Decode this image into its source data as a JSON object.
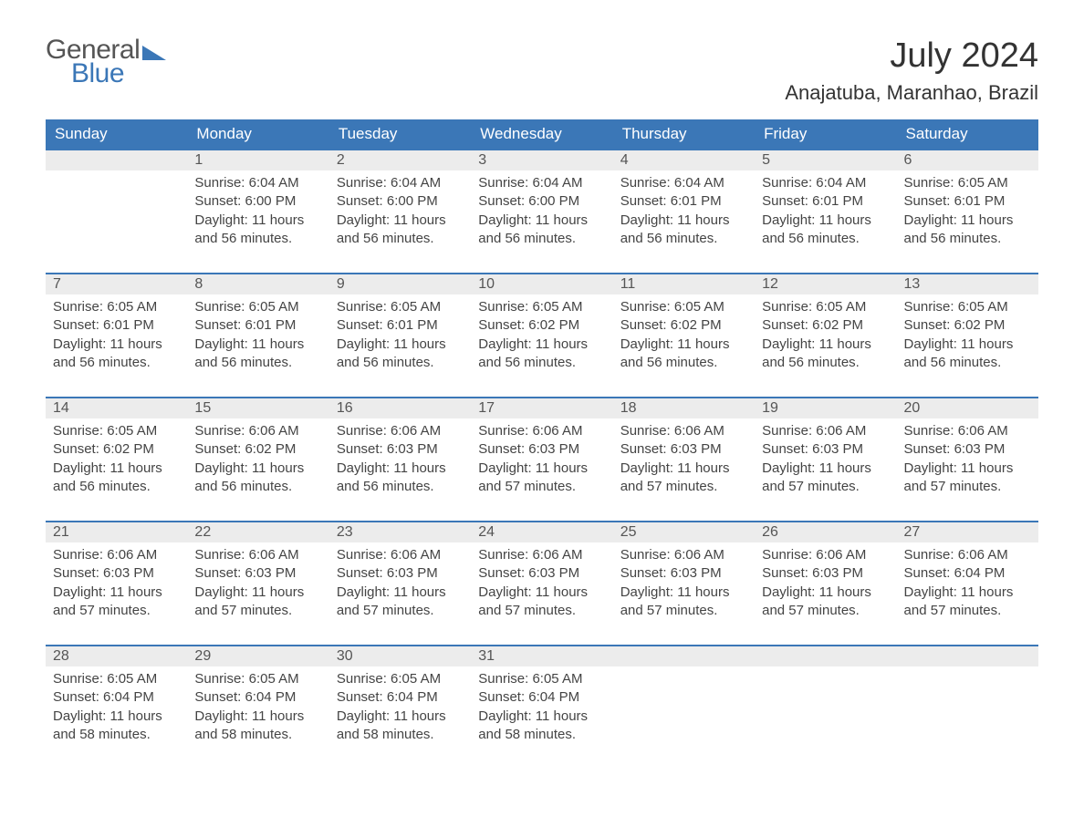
{
  "logo": {
    "line1": "General",
    "line2": "Blue",
    "brand_color": "#3b77b7",
    "text_color": "#555555"
  },
  "title": "July 2024",
  "location": "Anajatuba, Maranhao, Brazil",
  "colors": {
    "header_bg": "#3b77b7",
    "header_text": "#ffffff",
    "daynum_bg": "#ececec",
    "daynum_border": "#3b77b7",
    "body_text": "#444444",
    "page_bg": "#ffffff"
  },
  "columns": [
    "Sunday",
    "Monday",
    "Tuesday",
    "Wednesday",
    "Thursday",
    "Friday",
    "Saturday"
  ],
  "weeks": [
    [
      null,
      {
        "n": "1",
        "sunrise": "Sunrise: 6:04 AM",
        "sunset": "Sunset: 6:00 PM",
        "day1": "Daylight: 11 hours",
        "day2": "and 56 minutes."
      },
      {
        "n": "2",
        "sunrise": "Sunrise: 6:04 AM",
        "sunset": "Sunset: 6:00 PM",
        "day1": "Daylight: 11 hours",
        "day2": "and 56 minutes."
      },
      {
        "n": "3",
        "sunrise": "Sunrise: 6:04 AM",
        "sunset": "Sunset: 6:00 PM",
        "day1": "Daylight: 11 hours",
        "day2": "and 56 minutes."
      },
      {
        "n": "4",
        "sunrise": "Sunrise: 6:04 AM",
        "sunset": "Sunset: 6:01 PM",
        "day1": "Daylight: 11 hours",
        "day2": "and 56 minutes."
      },
      {
        "n": "5",
        "sunrise": "Sunrise: 6:04 AM",
        "sunset": "Sunset: 6:01 PM",
        "day1": "Daylight: 11 hours",
        "day2": "and 56 minutes."
      },
      {
        "n": "6",
        "sunrise": "Sunrise: 6:05 AM",
        "sunset": "Sunset: 6:01 PM",
        "day1": "Daylight: 11 hours",
        "day2": "and 56 minutes."
      }
    ],
    [
      {
        "n": "7",
        "sunrise": "Sunrise: 6:05 AM",
        "sunset": "Sunset: 6:01 PM",
        "day1": "Daylight: 11 hours",
        "day2": "and 56 minutes."
      },
      {
        "n": "8",
        "sunrise": "Sunrise: 6:05 AM",
        "sunset": "Sunset: 6:01 PM",
        "day1": "Daylight: 11 hours",
        "day2": "and 56 minutes."
      },
      {
        "n": "9",
        "sunrise": "Sunrise: 6:05 AM",
        "sunset": "Sunset: 6:01 PM",
        "day1": "Daylight: 11 hours",
        "day2": "and 56 minutes."
      },
      {
        "n": "10",
        "sunrise": "Sunrise: 6:05 AM",
        "sunset": "Sunset: 6:02 PM",
        "day1": "Daylight: 11 hours",
        "day2": "and 56 minutes."
      },
      {
        "n": "11",
        "sunrise": "Sunrise: 6:05 AM",
        "sunset": "Sunset: 6:02 PM",
        "day1": "Daylight: 11 hours",
        "day2": "and 56 minutes."
      },
      {
        "n": "12",
        "sunrise": "Sunrise: 6:05 AM",
        "sunset": "Sunset: 6:02 PM",
        "day1": "Daylight: 11 hours",
        "day2": "and 56 minutes."
      },
      {
        "n": "13",
        "sunrise": "Sunrise: 6:05 AM",
        "sunset": "Sunset: 6:02 PM",
        "day1": "Daylight: 11 hours",
        "day2": "and 56 minutes."
      }
    ],
    [
      {
        "n": "14",
        "sunrise": "Sunrise: 6:05 AM",
        "sunset": "Sunset: 6:02 PM",
        "day1": "Daylight: 11 hours",
        "day2": "and 56 minutes."
      },
      {
        "n": "15",
        "sunrise": "Sunrise: 6:06 AM",
        "sunset": "Sunset: 6:02 PM",
        "day1": "Daylight: 11 hours",
        "day2": "and 56 minutes."
      },
      {
        "n": "16",
        "sunrise": "Sunrise: 6:06 AM",
        "sunset": "Sunset: 6:03 PM",
        "day1": "Daylight: 11 hours",
        "day2": "and 56 minutes."
      },
      {
        "n": "17",
        "sunrise": "Sunrise: 6:06 AM",
        "sunset": "Sunset: 6:03 PM",
        "day1": "Daylight: 11 hours",
        "day2": "and 57 minutes."
      },
      {
        "n": "18",
        "sunrise": "Sunrise: 6:06 AM",
        "sunset": "Sunset: 6:03 PM",
        "day1": "Daylight: 11 hours",
        "day2": "and 57 minutes."
      },
      {
        "n": "19",
        "sunrise": "Sunrise: 6:06 AM",
        "sunset": "Sunset: 6:03 PM",
        "day1": "Daylight: 11 hours",
        "day2": "and 57 minutes."
      },
      {
        "n": "20",
        "sunrise": "Sunrise: 6:06 AM",
        "sunset": "Sunset: 6:03 PM",
        "day1": "Daylight: 11 hours",
        "day2": "and 57 minutes."
      }
    ],
    [
      {
        "n": "21",
        "sunrise": "Sunrise: 6:06 AM",
        "sunset": "Sunset: 6:03 PM",
        "day1": "Daylight: 11 hours",
        "day2": "and 57 minutes."
      },
      {
        "n": "22",
        "sunrise": "Sunrise: 6:06 AM",
        "sunset": "Sunset: 6:03 PM",
        "day1": "Daylight: 11 hours",
        "day2": "and 57 minutes."
      },
      {
        "n": "23",
        "sunrise": "Sunrise: 6:06 AM",
        "sunset": "Sunset: 6:03 PM",
        "day1": "Daylight: 11 hours",
        "day2": "and 57 minutes."
      },
      {
        "n": "24",
        "sunrise": "Sunrise: 6:06 AM",
        "sunset": "Sunset: 6:03 PM",
        "day1": "Daylight: 11 hours",
        "day2": "and 57 minutes."
      },
      {
        "n": "25",
        "sunrise": "Sunrise: 6:06 AM",
        "sunset": "Sunset: 6:03 PM",
        "day1": "Daylight: 11 hours",
        "day2": "and 57 minutes."
      },
      {
        "n": "26",
        "sunrise": "Sunrise: 6:06 AM",
        "sunset": "Sunset: 6:03 PM",
        "day1": "Daylight: 11 hours",
        "day2": "and 57 minutes."
      },
      {
        "n": "27",
        "sunrise": "Sunrise: 6:06 AM",
        "sunset": "Sunset: 6:04 PM",
        "day1": "Daylight: 11 hours",
        "day2": "and 57 minutes."
      }
    ],
    [
      {
        "n": "28",
        "sunrise": "Sunrise: 6:05 AM",
        "sunset": "Sunset: 6:04 PM",
        "day1": "Daylight: 11 hours",
        "day2": "and 58 minutes."
      },
      {
        "n": "29",
        "sunrise": "Sunrise: 6:05 AM",
        "sunset": "Sunset: 6:04 PM",
        "day1": "Daylight: 11 hours",
        "day2": "and 58 minutes."
      },
      {
        "n": "30",
        "sunrise": "Sunrise: 6:05 AM",
        "sunset": "Sunset: 6:04 PM",
        "day1": "Daylight: 11 hours",
        "day2": "and 58 minutes."
      },
      {
        "n": "31",
        "sunrise": "Sunrise: 6:05 AM",
        "sunset": "Sunset: 6:04 PM",
        "day1": "Daylight: 11 hours",
        "day2": "and 58 minutes."
      },
      null,
      null,
      null
    ]
  ]
}
